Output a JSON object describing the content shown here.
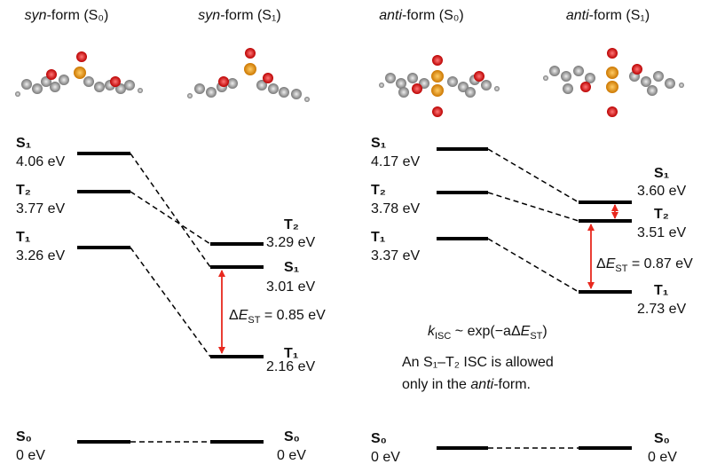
{
  "titles": [
    {
      "italic": "syn",
      "rest": "-form (S₀)"
    },
    {
      "italic": "syn",
      "rest": "-form (S₁)"
    },
    {
      "italic": "anti",
      "rest": "-form (S₀)"
    },
    {
      "italic": "anti",
      "rest": "-form (S₁)"
    }
  ],
  "columns": [
    {
      "levels": [
        {
          "state": "S₁",
          "energy": "4.06 eV"
        },
        {
          "state": "T₂",
          "energy": "3.77 eV"
        },
        {
          "state": "T₁",
          "energy": "3.26 eV"
        },
        {
          "state": "S₀",
          "energy": "0 eV"
        }
      ]
    },
    {
      "levels": [
        {
          "state": "T₂",
          "energy": "3.29 eV"
        },
        {
          "state": "S₁",
          "energy": "3.01 eV"
        },
        {
          "state": "T₁",
          "energy": "2.16 eV"
        },
        {
          "state": "S₀",
          "energy": "0 eV"
        }
      ]
    },
    {
      "levels": [
        {
          "state": "S₁",
          "energy": "4.17 eV"
        },
        {
          "state": "T₂",
          "energy": "3.78 eV"
        },
        {
          "state": "T₁",
          "energy": "3.37 eV"
        },
        {
          "state": "S₀",
          "energy": "0 eV"
        }
      ]
    },
    {
      "levels": [
        {
          "state": "S₁",
          "energy": "3.60 eV"
        },
        {
          "state": "T₂",
          "energy": "3.51 eV"
        },
        {
          "state": "T₁",
          "energy": "2.73 eV"
        },
        {
          "state": "S₀",
          "energy": "0 eV"
        }
      ]
    }
  ],
  "gaps": [
    [
      "Δ",
      "E",
      "ST",
      " = 0.85 eV"
    ],
    [
      "Δ",
      "E",
      "ST",
      " = 0.87 eV"
    ]
  ],
  "rate": [
    "k",
    "ISC",
    " ~ exp(−aΔ",
    "E",
    "ST",
    ")"
  ],
  "note": {
    "line1": "An S₁–T₂ ISC is allowed",
    "line2_start": "only in the ",
    "line2_italic": "anti",
    "line2_end": "-form."
  }
}
